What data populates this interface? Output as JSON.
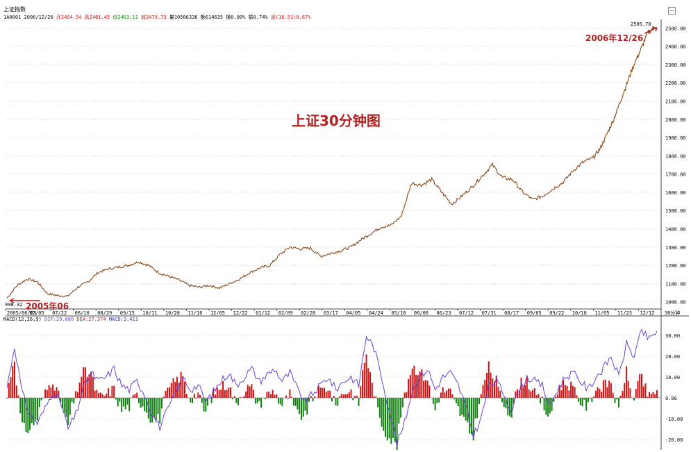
{
  "header": {
    "title": "上证指数",
    "code": "1A0001",
    "date": "2006/12/26",
    "open": "开2464.54",
    "high": "高2481.45",
    "low": "低2463.11",
    "close": "收2479.73",
    "volume": "量10506336",
    "amount": "额614635",
    "turnover": "换0.00%",
    "amplitude": "振0.74%",
    "change": "涨(16.51)0.67%"
  },
  "annotations": {
    "title": "上证30分钟图",
    "end_label": "2006年12/26",
    "start_label": "2005年06",
    "high_value": "2505.70",
    "low_value": "998.32",
    "period": "30分钟"
  },
  "macd": {
    "header_name": "MACD(12,26,9)",
    "dif": "DIF:29.080",
    "dea": "DEA:27.374",
    "macd": "MACD:3.411"
  },
  "colors": {
    "up": "#d01010",
    "down": "#108010",
    "dif_line": "#6a3fd0",
    "price_line": "#8b4513",
    "grid": "#bbbbbb"
  },
  "chart_data": [
    {
      "type": "line",
      "name": "price",
      "ylim": [
        980,
        2520
      ],
      "yticks": [
        1000,
        1100,
        1200,
        1300,
        1400,
        1500,
        1600,
        1700,
        1800,
        1900,
        2000,
        2100,
        2200,
        2300,
        2400,
        2500
      ],
      "ytick_labels": [
        "1000.00",
        "1100.00",
        "1200.00",
        "1300.00",
        "1400.00",
        "1500.00",
        "1600.00",
        "1700.00",
        "1800.00",
        "1900.00",
        "2000.00",
        "2100.00",
        "2200.00",
        "2300.00",
        "2400.00",
        "2500.00"
      ],
      "xtick_labels": [
        "2005/06/03",
        "07/05",
        "07/22",
        "08/10",
        "08/29",
        "09/15",
        "10/11",
        "10/28",
        "11/16",
        "12/05",
        "12/22",
        "01/12",
        "02/09",
        "02/28",
        "03/17",
        "04/05",
        "04/24",
        "05/18",
        "06/06",
        "06/23",
        "07/12",
        "07/31",
        "08/17",
        "09/05",
        "09/22",
        "10/18",
        "11/05",
        "11/23",
        "12/12"
      ],
      "x": [
        0,
        0.5,
        1,
        1.5,
        2,
        2.5,
        3,
        3.5,
        4,
        4.5,
        5,
        5.5,
        6,
        6.5,
        7,
        7.5,
        8,
        8.5,
        9,
        9.5,
        10,
        10.5,
        11,
        11.5,
        12,
        12.5,
        13,
        13.5,
        14,
        14.5,
        15,
        15.5,
        16,
        16.5,
        17,
        17.5,
        18,
        18.5,
        19,
        19.5,
        20,
        20.5,
        21,
        21.5,
        22,
        22.5,
        23,
        23.5,
        24,
        24.5,
        25,
        25.5,
        26,
        26.5,
        27,
        27.5,
        28,
        28.5,
        29
      ],
      "values": [
        1020,
        1090,
        1125,
        1110,
        1045,
        1035,
        1030,
        1080,
        1110,
        1160,
        1180,
        1190,
        1200,
        1220,
        1200,
        1160,
        1140,
        1120,
        1090,
        1080,
        1090,
        1075,
        1100,
        1125,
        1160,
        1185,
        1200,
        1260,
        1300,
        1290,
        1295,
        1250,
        1265,
        1280,
        1300,
        1340,
        1375,
        1410,
        1420,
        1470,
        1650,
        1640,
        1670,
        1600,
        1535,
        1580,
        1630,
        1690,
        1750,
        1680,
        1670,
        1600,
        1560,
        1580,
        1620,
        1655,
        1720,
        1765,
        1790
      ],
      "series_end": [
        1790,
        1840,
        1920,
        2000,
        2100,
        2200,
        2300,
        2380,
        2470,
        2505
      ]
    },
    {
      "type": "bar",
      "name": "MACD",
      "ylim": [
        -25,
        36
      ],
      "yticks": [
        -20,
        -10,
        0,
        10,
        20,
        30
      ],
      "ytick_labels": [
        "-20.00",
        "-10.00",
        "0.00",
        "10.00",
        "20.00",
        "30.00"
      ],
      "dif_series": [
        5,
        25,
        2,
        -8,
        -12,
        -5,
        3,
        -2,
        -15,
        -8,
        5,
        12,
        8,
        10,
        14,
        6,
        4,
        8,
        2,
        -8,
        -14,
        -6,
        2,
        10,
        4,
        6,
        -2,
        3,
        8,
        12,
        6,
        10,
        14,
        8,
        11,
        14,
        8,
        12,
        4,
        -2,
        2,
        6,
        10,
        4,
        8,
        10,
        6,
        30,
        24,
        10,
        -6,
        -22,
        -12,
        4,
        10,
        14,
        4,
        10,
        12,
        6,
        -4,
        -18,
        -10,
        6,
        8,
        2,
        -6,
        4,
        10,
        8,
        6,
        -4,
        4,
        10,
        12,
        8,
        4,
        10,
        14,
        20,
        10,
        26,
        20,
        32,
        28,
        32
      ]
    }
  ]
}
